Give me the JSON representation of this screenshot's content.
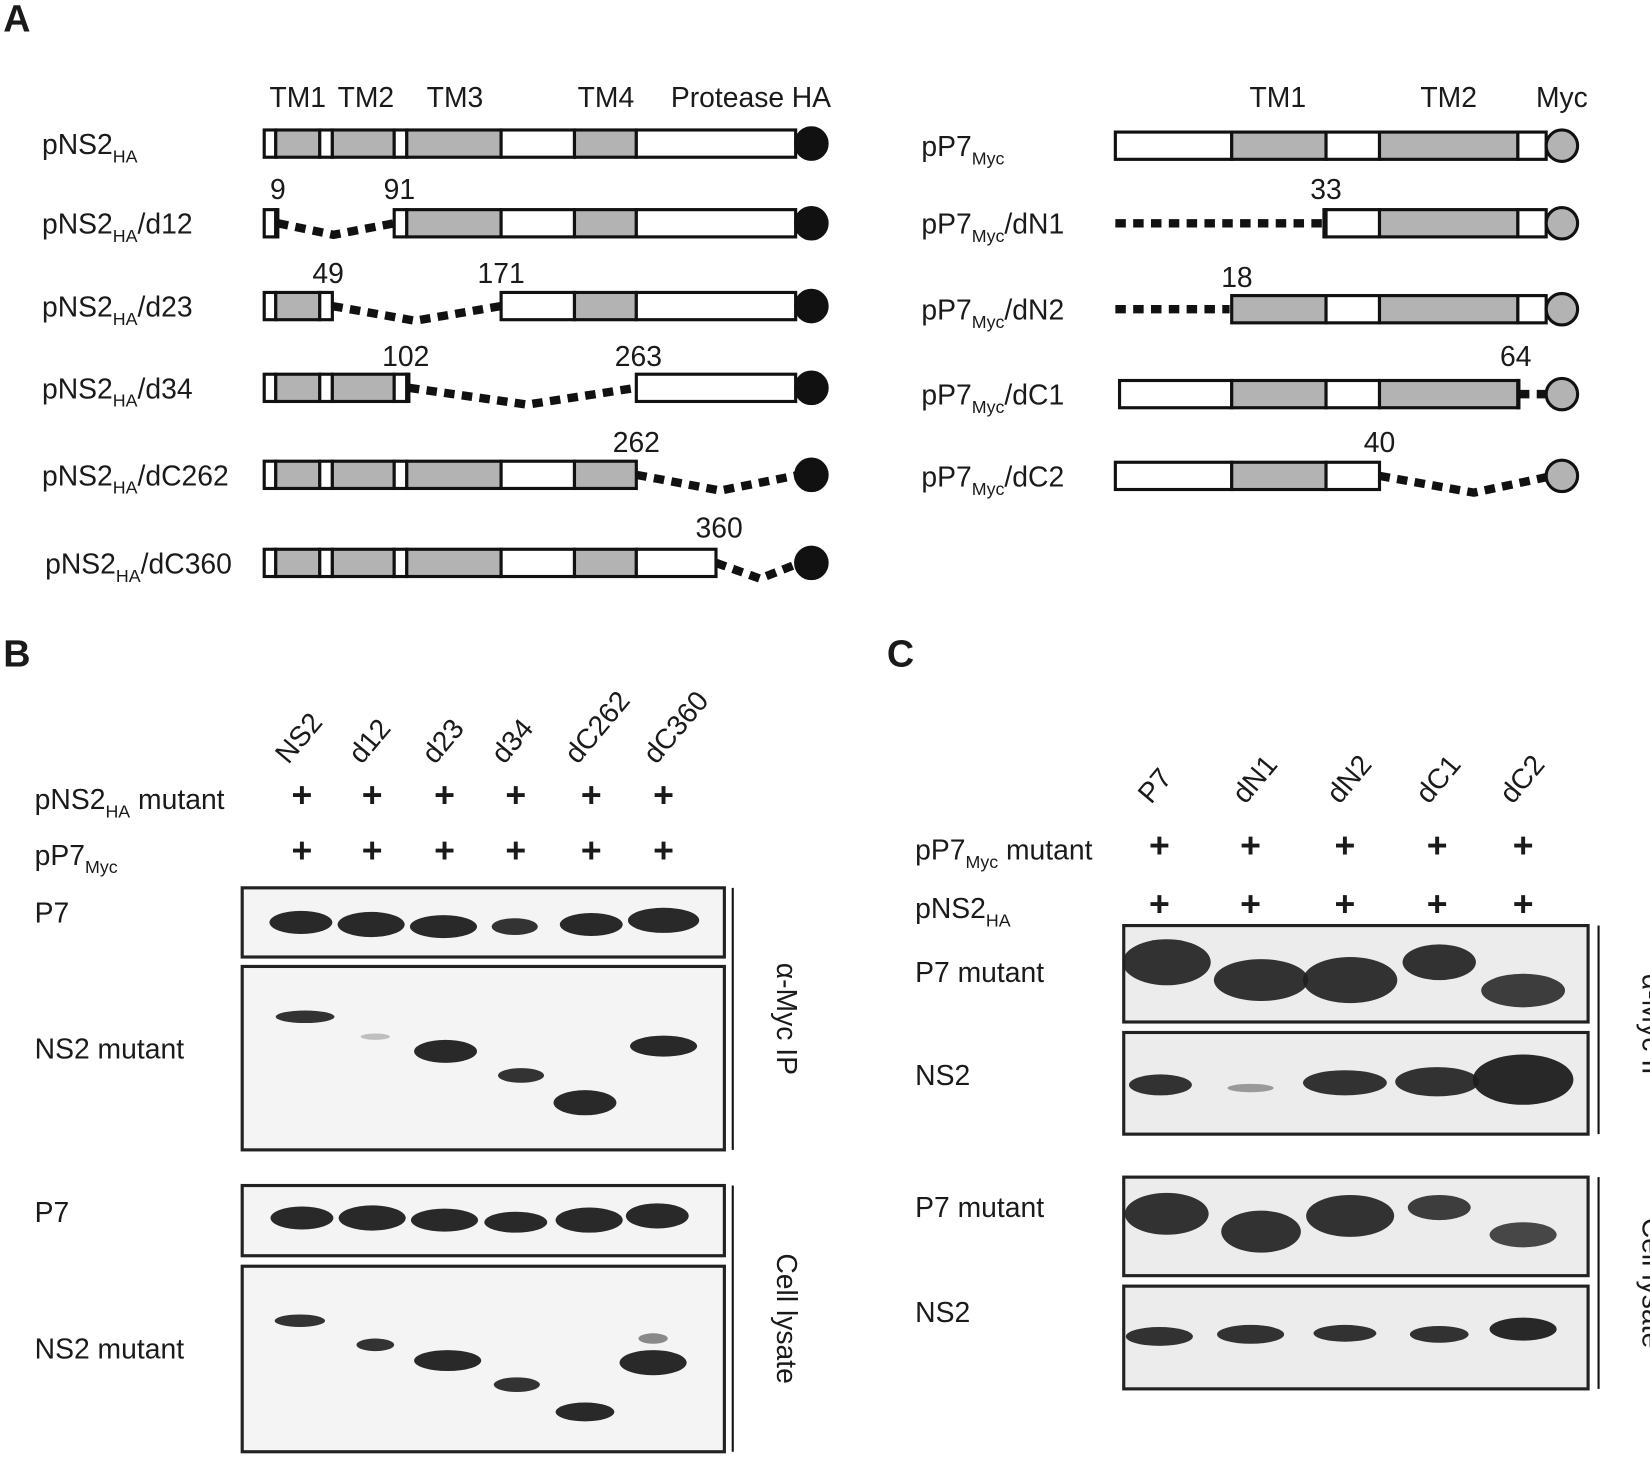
{
  "panel_a": {
    "label": "A",
    "ns2_header": [
      "TM1",
      "TM2",
      "TM3",
      "TM4",
      "Protease",
      "HA"
    ],
    "ns2_constructs": [
      {
        "name": "pNS2",
        "sub": "HA",
        "suffix": "",
        "numbers": []
      },
      {
        "name": "pNS2",
        "sub": "HA",
        "suffix": "/d12",
        "numbers": [
          "9",
          "91"
        ]
      },
      {
        "name": "pNS2",
        "sub": "HA",
        "suffix": "/d23",
        "numbers": [
          "49",
          "171"
        ]
      },
      {
        "name": "pNS2",
        "sub": "HA",
        "suffix": "/d34",
        "numbers": [
          "102",
          "263"
        ]
      },
      {
        "name": "pNS2",
        "sub": "HA",
        "suffix": "/dC262",
        "numbers": [
          "262"
        ]
      },
      {
        "name": "pNS2",
        "sub": "HA",
        "suffix": "/dC360",
        "numbers": [
          "360"
        ]
      }
    ],
    "p7_header": [
      "TM1",
      "TM2",
      "Myc"
    ],
    "p7_constructs": [
      {
        "name": "pP7",
        "sub": "Myc",
        "suffix": "",
        "numbers": []
      },
      {
        "name": "pP7",
        "sub": "Myc",
        "suffix": "/dN1",
        "numbers": [
          "33"
        ]
      },
      {
        "name": "pP7",
        "sub": "Myc",
        "suffix": "/dN2",
        "numbers": [
          "18"
        ]
      },
      {
        "name": "pP7",
        "sub": "Myc",
        "suffix": "/dC1",
        "numbers": [
          "64"
        ]
      },
      {
        "name": "pP7",
        "sub": "Myc",
        "suffix": "/dC2",
        "numbers": [
          "40"
        ]
      }
    ]
  },
  "panel_b": {
    "label": "B",
    "lanes": [
      "NS2",
      "d12",
      "d23",
      "d34",
      "dC262",
      "dC360"
    ],
    "rows": [
      {
        "name": "pNS2",
        "sub": "HA",
        "suffix": " mutant"
      },
      {
        "name": "pP7",
        "sub": "Myc",
        "suffix": ""
      }
    ],
    "plus": "+",
    "blot_labels": [
      "P7",
      "NS2 mutant",
      "P7",
      "NS2 mutant"
    ],
    "side_labels": [
      "α-Myc IP",
      "Cell lysate"
    ]
  },
  "panel_c": {
    "label": "C",
    "lanes": [
      "P7",
      "dN1",
      "dN2",
      "dC1",
      "dC2"
    ],
    "rows": [
      {
        "name": "pP7",
        "sub": "Myc",
        "suffix": " mutant"
      },
      {
        "name": "pNS2",
        "sub": "HA",
        "suffix": ""
      }
    ],
    "plus": "+",
    "blot_labels": [
      "P7 mutant",
      "NS2",
      "P7 mutant",
      "NS2"
    ],
    "side_labels": [
      "α-Myc IP",
      "Cell lysate"
    ]
  }
}
